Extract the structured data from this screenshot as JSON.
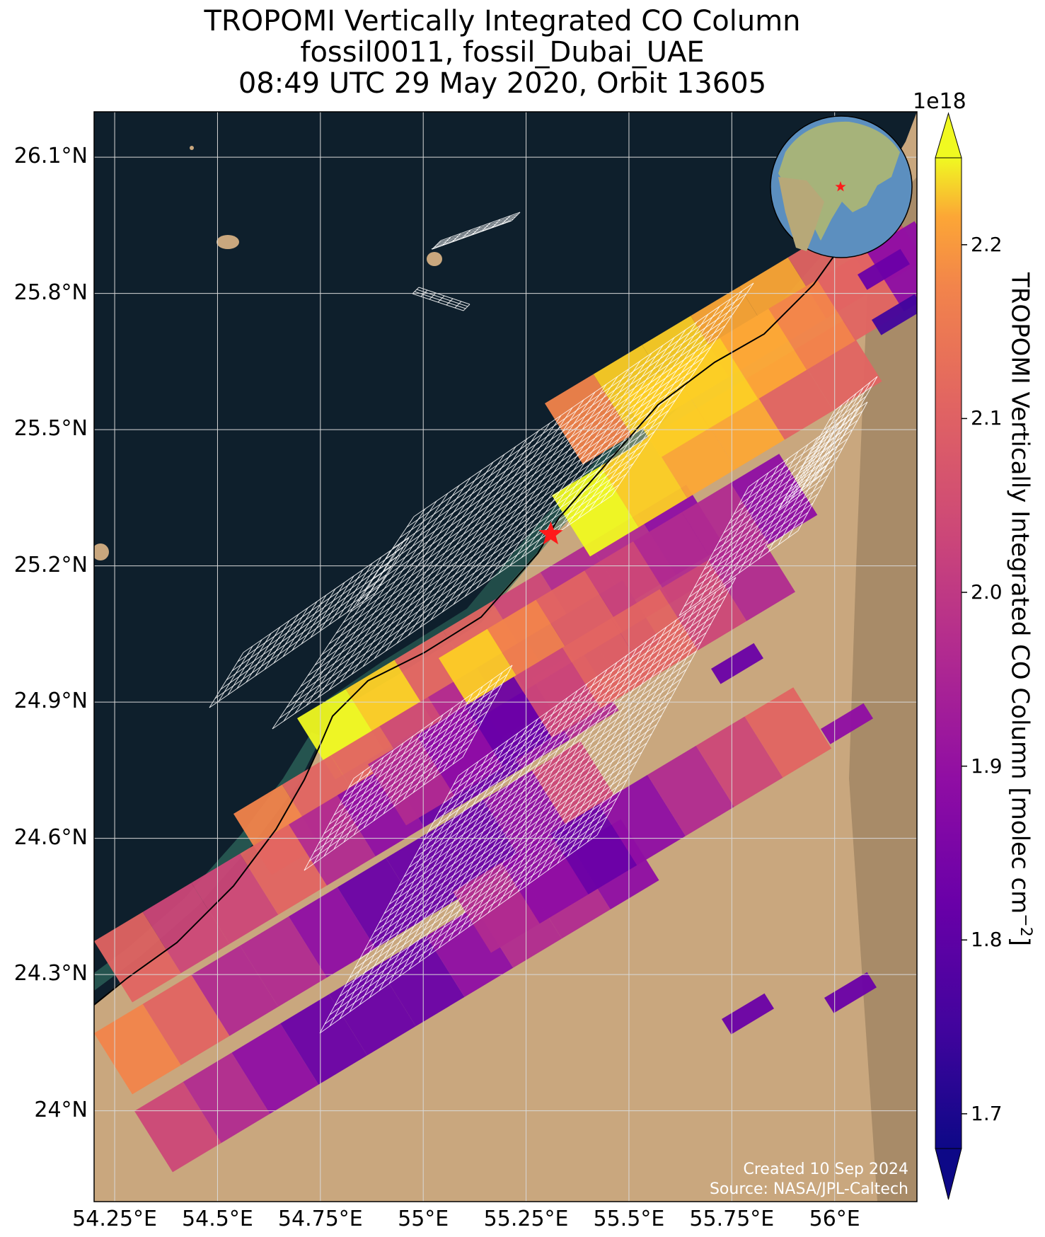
{
  "title": {
    "line1": "TROPOMI Vertically Integrated CO Column",
    "line2": "fossil0011, fossil_Dubai_UAE",
    "line3": "08:49 UTC 29 May 2020, Orbit 13605"
  },
  "axes": {
    "x_ticks": [
      "54.25°E",
      "54.5°E",
      "54.75°E",
      "55°E",
      "55.25°E",
      "55.5°E",
      "55.75°E",
      "56°E"
    ],
    "y_ticks": [
      "26.1°N",
      "25.8°N",
      "25.5°N",
      "25.2°N",
      "24.9°N",
      "24.6°N",
      "24.3°N",
      "24°N"
    ]
  },
  "colorbar": {
    "label": "TROPOMI Vertically Integrated CO Column [molec cm",
    "label_exp": "−2",
    "label_close": "]",
    "multiplier": "1e18",
    "ticks": [
      "2.2",
      "2.1",
      "2.0",
      "1.9",
      "1.8",
      "1.7"
    ],
    "colormap": "plasma",
    "range": [
      1.68,
      2.25
    ],
    "extend": "both"
  },
  "credits": {
    "created": "Created 10 Sep 2024",
    "source": "Source: NASA/JPL-Caltech"
  },
  "map": {
    "extent_lon": [
      54.2,
      56.2
    ],
    "extent_lat": [
      23.8,
      26.2
    ],
    "target_marker": "red-star",
    "target_lon": 55.31,
    "target_lat": 25.27,
    "ocean_color": "#0e1f2c",
    "land_color": "#c9a77e"
  },
  "colors": {
    "grid": "#d8d8d8",
    "grid_overlay": "#ffffff",
    "star": "#ff1a1a"
  }
}
